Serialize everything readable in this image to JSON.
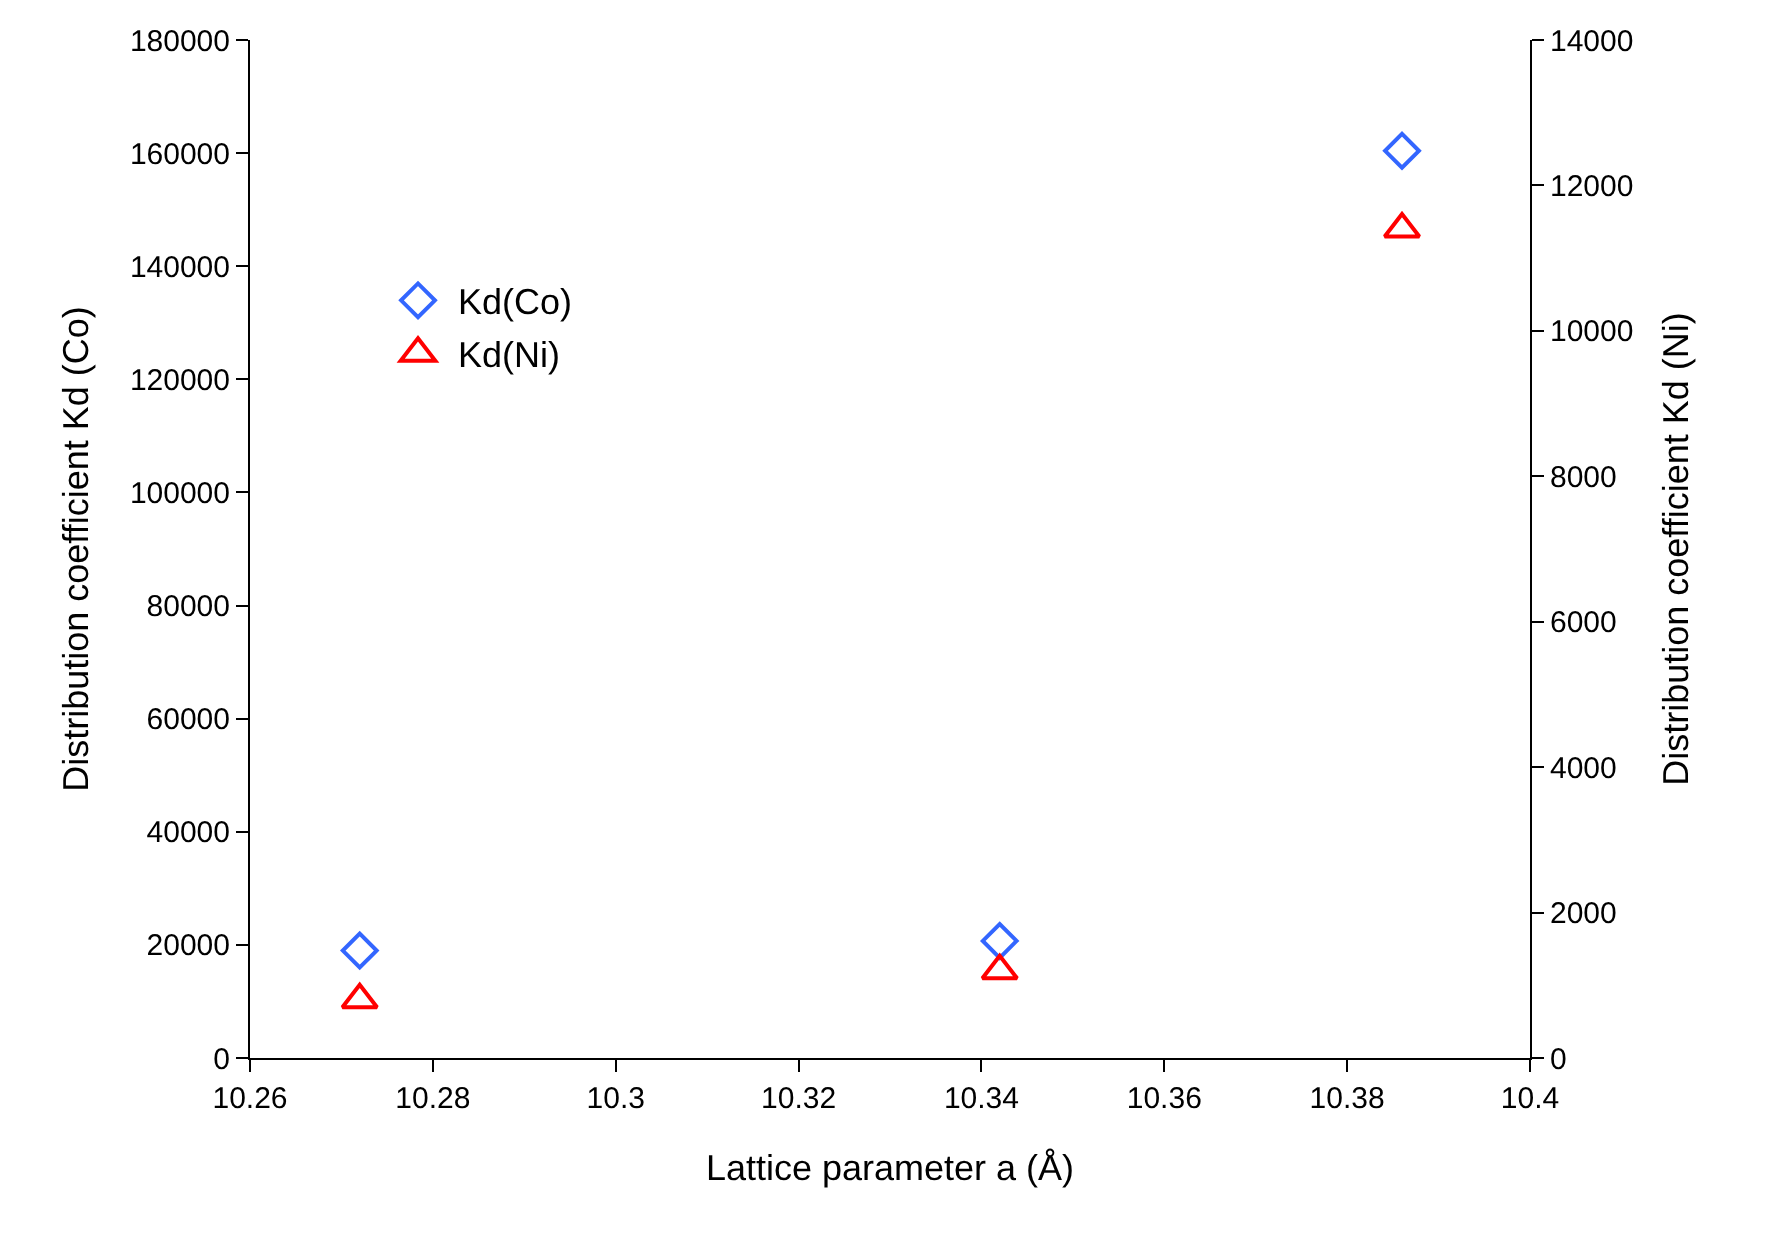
{
  "chart_data": {
    "type": "scatter",
    "xlabel": "Lattice parameter a (Å)",
    "ylabel": "Distribution coefficient Kd (Co)",
    "y2label": "Distribution coefficient Kd (Ni)",
    "x": [
      10.272,
      10.342,
      10.386
    ],
    "series": [
      {
        "name": "Kd(Co)",
        "color": "#3366ff",
        "marker": "diamond",
        "values": [
          19000,
          20700,
          160400
        ]
      },
      {
        "name": "Kd(Ni)",
        "color": "#ff0000",
        "marker": "triangle",
        "axis": "y2",
        "values": [
          800,
          1200,
          11400
        ]
      }
    ],
    "xlim": [
      10.26,
      10.4
    ],
    "xticks": [
      10.26,
      10.28,
      10.3,
      10.32,
      10.34,
      10.36,
      10.38,
      10.4
    ],
    "ylim": [
      0,
      180000
    ],
    "yticks": [
      0,
      20000,
      40000,
      60000,
      80000,
      100000,
      120000,
      140000,
      160000,
      180000
    ],
    "y2lim": [
      0,
      14000
    ],
    "y2ticks": [
      0,
      2000,
      4000,
      6000,
      8000,
      10000,
      12000,
      14000
    ],
    "grid": false,
    "legend": "top left"
  }
}
